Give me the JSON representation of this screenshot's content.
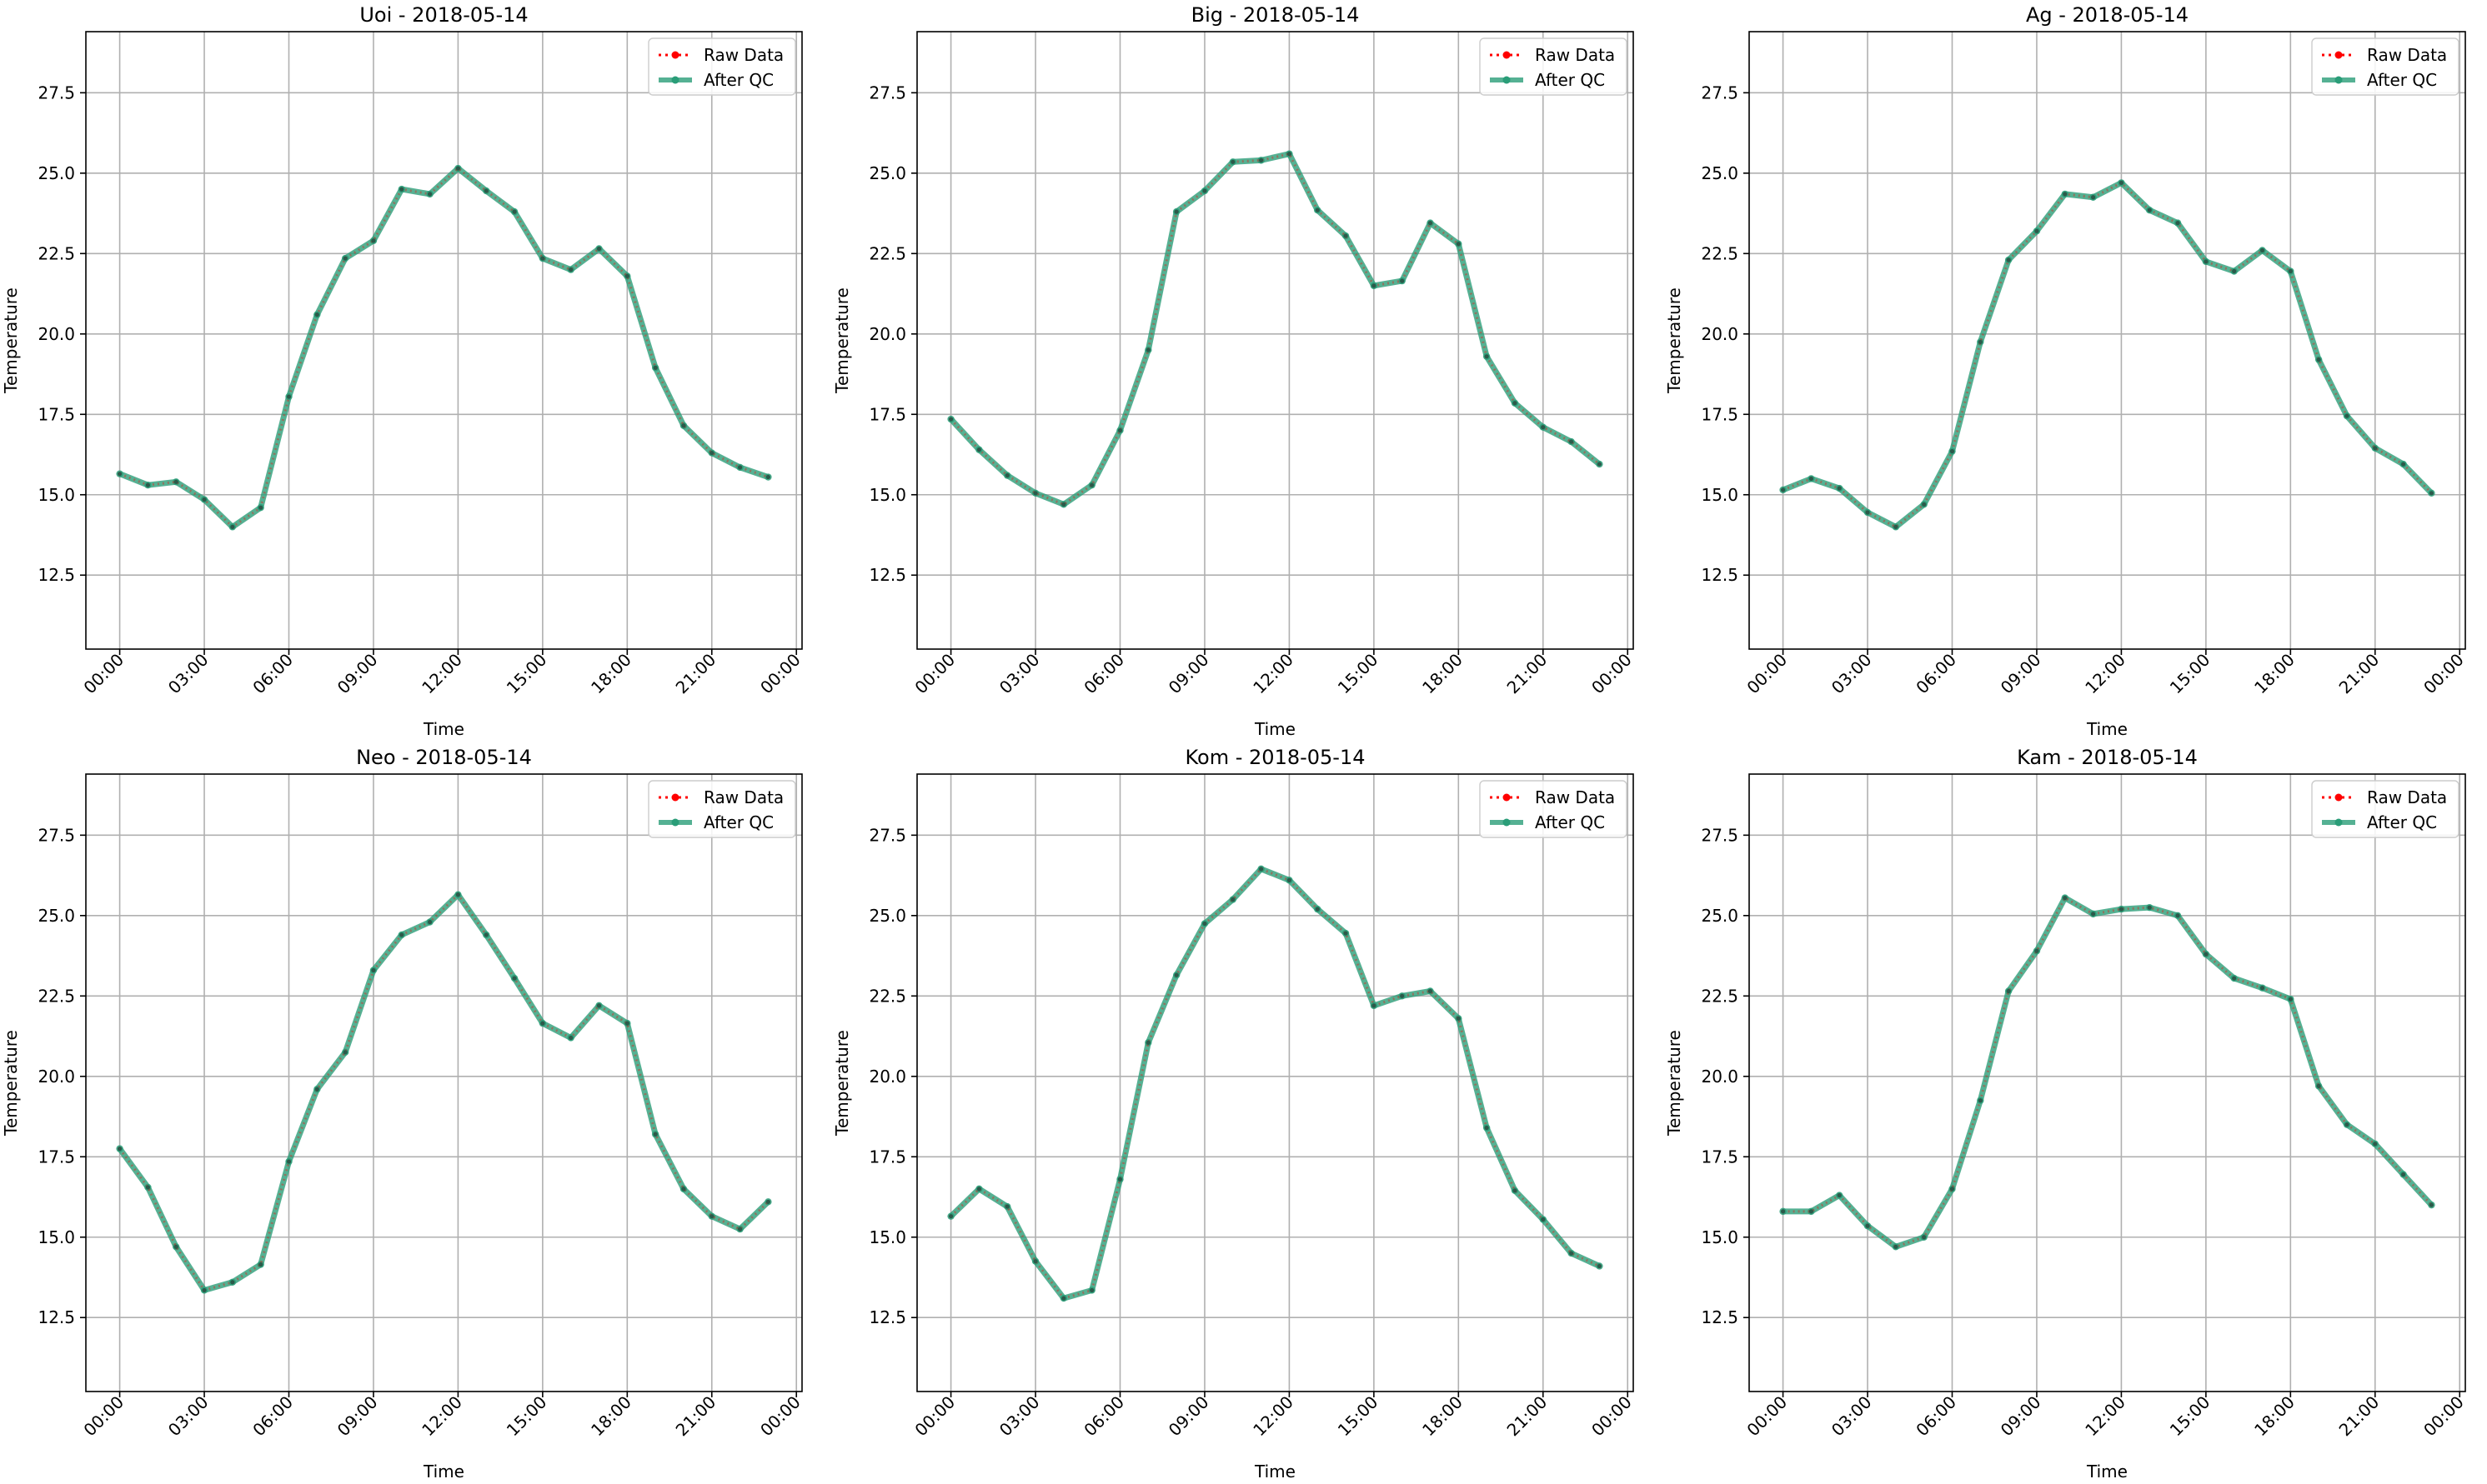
{
  "colors": {
    "raw": "#ff0000",
    "qc": "#2a9d78",
    "grid": "#b0b0b0",
    "axis": "#000000"
  },
  "legend_labels": {
    "raw": "Raw Data",
    "qc": "After QC"
  },
  "chart_data": [
    {
      "type": "line",
      "title": "Uoi - 2018-05-14",
      "xlabel": "Time",
      "ylabel": "Temperature",
      "xticks": [
        "00:00",
        "03:00",
        "06:00",
        "09:00",
        "12:00",
        "15:00",
        "18:00",
        "21:00",
        "00:00"
      ],
      "yticks": [
        "12.5",
        "15.0",
        "17.5",
        "20.0",
        "22.5",
        "25.0",
        "27.5"
      ],
      "xlim": [
        -1.2,
        24.2
      ],
      "ylim": [
        10.2,
        29.4
      ],
      "grid": true,
      "legend": "upper right",
      "x": [
        0,
        1,
        2,
        3,
        4,
        5,
        6,
        7,
        8,
        9,
        10,
        11,
        12,
        13,
        14,
        15,
        16,
        17,
        18,
        19,
        20,
        21,
        22,
        23
      ],
      "series": [
        {
          "name": "Raw Data",
          "values": [
            15.65,
            15.3,
            15.4,
            14.85,
            14.0,
            14.6,
            18.05,
            20.6,
            22.35,
            22.9,
            24.5,
            24.35,
            25.15,
            24.45,
            23.8,
            22.35,
            22.0,
            22.65,
            21.8,
            18.95,
            17.15,
            16.3,
            15.85,
            15.55
          ]
        },
        {
          "name": "After QC",
          "values": [
            15.65,
            15.3,
            15.4,
            14.85,
            14.0,
            14.6,
            18.05,
            20.6,
            22.35,
            22.9,
            24.5,
            24.35,
            25.15,
            24.45,
            23.8,
            22.35,
            22.0,
            22.65,
            21.8,
            18.95,
            17.15,
            16.3,
            15.85,
            15.55
          ]
        }
      ]
    },
    {
      "type": "line",
      "title": "Big - 2018-05-14",
      "xlabel": "Time",
      "ylabel": "Temperature",
      "xticks": [
        "00:00",
        "03:00",
        "06:00",
        "09:00",
        "12:00",
        "15:00",
        "18:00",
        "21:00",
        "00:00"
      ],
      "yticks": [
        "12.5",
        "15.0",
        "17.5",
        "20.0",
        "22.5",
        "25.0",
        "27.5"
      ],
      "xlim": [
        -1.2,
        24.2
      ],
      "ylim": [
        10.2,
        29.4
      ],
      "grid": true,
      "legend": "upper right",
      "x": [
        0,
        1,
        2,
        3,
        4,
        5,
        6,
        7,
        8,
        9,
        10,
        11,
        12,
        13,
        14,
        15,
        16,
        17,
        18,
        19,
        20,
        21,
        22,
        23
      ],
      "series": [
        {
          "name": "Raw Data",
          "values": [
            17.35,
            16.4,
            15.6,
            15.05,
            14.7,
            15.3,
            17.0,
            19.5,
            23.8,
            24.45,
            25.35,
            25.4,
            25.6,
            23.85,
            23.05,
            21.5,
            21.65,
            23.45,
            22.8,
            19.3,
            17.85,
            17.1,
            16.65,
            15.95
          ]
        },
        {
          "name": "After QC",
          "values": [
            17.35,
            16.4,
            15.6,
            15.05,
            14.7,
            15.3,
            17.0,
            19.5,
            23.8,
            24.45,
            25.35,
            25.4,
            25.6,
            23.85,
            23.05,
            21.5,
            21.65,
            23.45,
            22.8,
            19.3,
            17.85,
            17.1,
            16.65,
            15.95
          ]
        }
      ]
    },
    {
      "type": "line",
      "title": "Ag - 2018-05-14",
      "xlabel": "Time",
      "ylabel": "Temperature",
      "xticks": [
        "00:00",
        "03:00",
        "06:00",
        "09:00",
        "12:00",
        "15:00",
        "18:00",
        "21:00",
        "00:00"
      ],
      "yticks": [
        "12.5",
        "15.0",
        "17.5",
        "20.0",
        "22.5",
        "25.0",
        "27.5"
      ],
      "xlim": [
        -1.2,
        24.2
      ],
      "ylim": [
        10.2,
        29.4
      ],
      "grid": true,
      "legend": "upper right",
      "x": [
        0,
        1,
        2,
        3,
        4,
        5,
        6,
        7,
        8,
        9,
        10,
        11,
        12,
        13,
        14,
        15,
        16,
        17,
        18,
        19,
        20,
        21,
        22,
        23
      ],
      "series": [
        {
          "name": "Raw Data",
          "values": [
            15.15,
            15.5,
            15.2,
            14.45,
            14.0,
            14.7,
            16.35,
            19.75,
            22.3,
            23.2,
            24.35,
            24.25,
            24.7,
            23.85,
            23.45,
            22.25,
            21.95,
            22.6,
            21.95,
            19.2,
            17.45,
            16.45,
            15.95,
            15.05
          ]
        },
        {
          "name": "After QC",
          "values": [
            15.15,
            15.5,
            15.2,
            14.45,
            14.0,
            14.7,
            16.35,
            19.75,
            22.3,
            23.2,
            24.35,
            24.25,
            24.7,
            23.85,
            23.45,
            22.25,
            21.95,
            22.6,
            21.95,
            19.2,
            17.45,
            16.45,
            15.95,
            15.05
          ]
        }
      ]
    },
    {
      "type": "line",
      "title": "Neo - 2018-05-14",
      "xlabel": "Time",
      "ylabel": "Temperature",
      "xticks": [
        "00:00",
        "03:00",
        "06:00",
        "09:00",
        "12:00",
        "15:00",
        "18:00",
        "21:00",
        "00:00"
      ],
      "yticks": [
        "12.5",
        "15.0",
        "17.5",
        "20.0",
        "22.5",
        "25.0",
        "27.5"
      ],
      "xlim": [
        -1.2,
        24.2
      ],
      "ylim": [
        10.2,
        29.4
      ],
      "grid": true,
      "legend": "upper right",
      "x": [
        0,
        1,
        2,
        3,
        4,
        5,
        6,
        7,
        8,
        9,
        10,
        11,
        12,
        13,
        14,
        15,
        16,
        17,
        18,
        19,
        20,
        21,
        22,
        23
      ],
      "series": [
        {
          "name": "Raw Data",
          "values": [
            17.75,
            16.55,
            14.7,
            13.35,
            13.6,
            14.15,
            17.35,
            19.6,
            20.75,
            23.3,
            24.4,
            24.8,
            25.65,
            24.4,
            23.05,
            21.65,
            21.2,
            22.2,
            21.65,
            18.2,
            16.5,
            15.65,
            15.25,
            16.1
          ]
        },
        {
          "name": "After QC",
          "values": [
            17.75,
            16.55,
            14.7,
            13.35,
            13.6,
            14.15,
            17.35,
            19.6,
            20.75,
            23.3,
            24.4,
            24.8,
            25.65,
            24.4,
            23.05,
            21.65,
            21.2,
            22.2,
            21.65,
            18.2,
            16.5,
            15.65,
            15.25,
            16.1
          ]
        }
      ]
    },
    {
      "type": "line",
      "title": "Kom - 2018-05-14",
      "xlabel": "Time",
      "ylabel": "Temperature",
      "xticks": [
        "00:00",
        "03:00",
        "06:00",
        "09:00",
        "12:00",
        "15:00",
        "18:00",
        "21:00",
        "00:00"
      ],
      "yticks": [
        "12.5",
        "15.0",
        "17.5",
        "20.0",
        "22.5",
        "25.0",
        "27.5"
      ],
      "xlim": [
        -1.2,
        24.2
      ],
      "ylim": [
        10.2,
        29.4
      ],
      "grid": true,
      "legend": "upper right",
      "x": [
        0,
        1,
        2,
        3,
        4,
        5,
        6,
        7,
        8,
        9,
        10,
        11,
        12,
        13,
        14,
        15,
        16,
        17,
        18,
        19,
        20,
        21,
        22,
        23
      ],
      "series": [
        {
          "name": "Raw Data",
          "values": [
            15.65,
            16.5,
            15.95,
            14.25,
            13.1,
            13.35,
            16.8,
            21.05,
            23.15,
            24.75,
            25.5,
            26.45,
            26.1,
            25.2,
            24.45,
            22.2,
            22.5,
            22.65,
            21.8,
            18.4,
            16.45,
            15.55,
            14.5,
            14.1
          ]
        },
        {
          "name": "After QC",
          "values": [
            15.65,
            16.5,
            15.95,
            14.25,
            13.1,
            13.35,
            16.8,
            21.05,
            23.15,
            24.75,
            25.5,
            26.45,
            26.1,
            25.2,
            24.45,
            22.2,
            22.5,
            22.65,
            21.8,
            18.4,
            16.45,
            15.55,
            14.5,
            14.1
          ]
        }
      ]
    },
    {
      "type": "line",
      "title": "Kam - 2018-05-14",
      "xlabel": "Time",
      "ylabel": "Temperature",
      "xticks": [
        "00:00",
        "03:00",
        "06:00",
        "09:00",
        "12:00",
        "15:00",
        "18:00",
        "21:00",
        "00:00"
      ],
      "yticks": [
        "12.5",
        "15.0",
        "17.5",
        "20.0",
        "22.5",
        "25.0",
        "27.5"
      ],
      "xlim": [
        -1.2,
        24.2
      ],
      "ylim": [
        10.2,
        29.4
      ],
      "grid": true,
      "legend": "upper right",
      "x": [
        0,
        1,
        2,
        3,
        4,
        5,
        6,
        7,
        8,
        9,
        10,
        11,
        12,
        13,
        14,
        15,
        16,
        17,
        18,
        19,
        20,
        21,
        22,
        23
      ],
      "series": [
        {
          "name": "Raw Data",
          "values": [
            15.8,
            15.8,
            16.3,
            15.35,
            14.7,
            15.0,
            16.5,
            19.25,
            22.65,
            23.9,
            25.55,
            25.05,
            25.2,
            25.25,
            25.0,
            23.8,
            23.05,
            22.75,
            22.4,
            19.7,
            18.5,
            17.9,
            16.95,
            16.0
          ]
        },
        {
          "name": "After QC",
          "values": [
            15.8,
            15.8,
            16.3,
            15.35,
            14.7,
            15.0,
            16.5,
            19.25,
            22.65,
            23.9,
            25.55,
            25.05,
            25.2,
            25.25,
            25.0,
            23.8,
            23.05,
            22.75,
            22.4,
            19.7,
            18.5,
            17.9,
            16.95,
            16.0
          ]
        }
      ]
    }
  ]
}
